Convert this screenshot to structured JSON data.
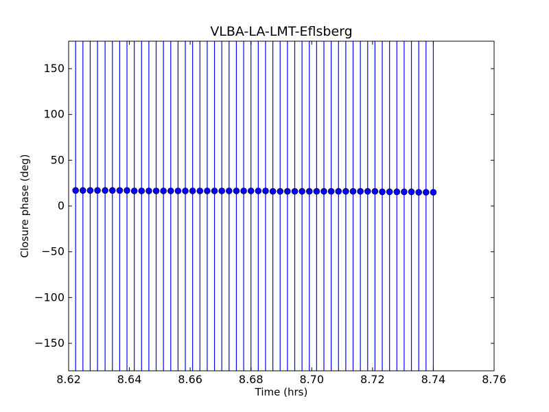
{
  "chart_data": {
    "type": "scatter",
    "title": "VLBA-LA-LMT-Eflsberg",
    "xlabel": "Time (hrs)",
    "ylabel": "Closure phase (deg)",
    "xlim": [
      8.62,
      8.76
    ],
    "ylim": [
      -180,
      180
    ],
    "xticks": [
      8.62,
      8.64,
      8.66,
      8.68,
      8.7,
      8.72,
      8.74,
      8.76
    ],
    "xtick_labels": [
      "8.62",
      "8.64",
      "8.66",
      "8.68",
      "8.70",
      "8.72",
      "8.74",
      "8.76"
    ],
    "yticks": [
      -150,
      -100,
      -50,
      0,
      50,
      100,
      150
    ],
    "ytick_labels": [
      "−150",
      "−100",
      "−50",
      "0",
      "50",
      "100",
      "150"
    ],
    "grid": false,
    "marker_color": "#0000ff",
    "errorbar_color": "#0000ff",
    "series": [
      {
        "x": [
          8.6223,
          8.6247,
          8.6271,
          8.6295,
          8.632,
          8.6344,
          8.6368,
          8.6392,
          8.6416,
          8.644,
          8.6464,
          8.6488,
          8.6512,
          8.6536,
          8.656,
          8.6584,
          8.6608,
          8.6632,
          8.6656,
          8.668,
          8.6704,
          8.6728,
          8.6752,
          8.6776,
          8.68,
          8.6824,
          8.6848,
          8.6872,
          8.6896,
          8.692,
          8.6944,
          8.6968,
          8.6992,
          8.7016,
          8.704,
          8.7064,
          8.7088,
          8.7112,
          8.7136,
          8.716,
          8.7184,
          8.7208,
          8.7232,
          8.7256,
          8.728,
          8.7304,
          8.7328,
          8.7352,
          8.7376,
          8.74
        ],
        "y": [
          17,
          17,
          17,
          17,
          17,
          17,
          17,
          17,
          16.5,
          16.5,
          16.5,
          16.5,
          16.5,
          16.5,
          16.5,
          16.5,
          16.5,
          16.5,
          16.5,
          16.5,
          16.5,
          16.5,
          16.5,
          16.5,
          16.5,
          16.5,
          16.5,
          16,
          16,
          16,
          16,
          16,
          16,
          16,
          16,
          16,
          16,
          16,
          16,
          16,
          16,
          16,
          15.5,
          15.5,
          15.5,
          15.5,
          15.5,
          15,
          15,
          15
        ],
        "yerr_low": -180,
        "yerr_high": 180
      }
    ]
  }
}
